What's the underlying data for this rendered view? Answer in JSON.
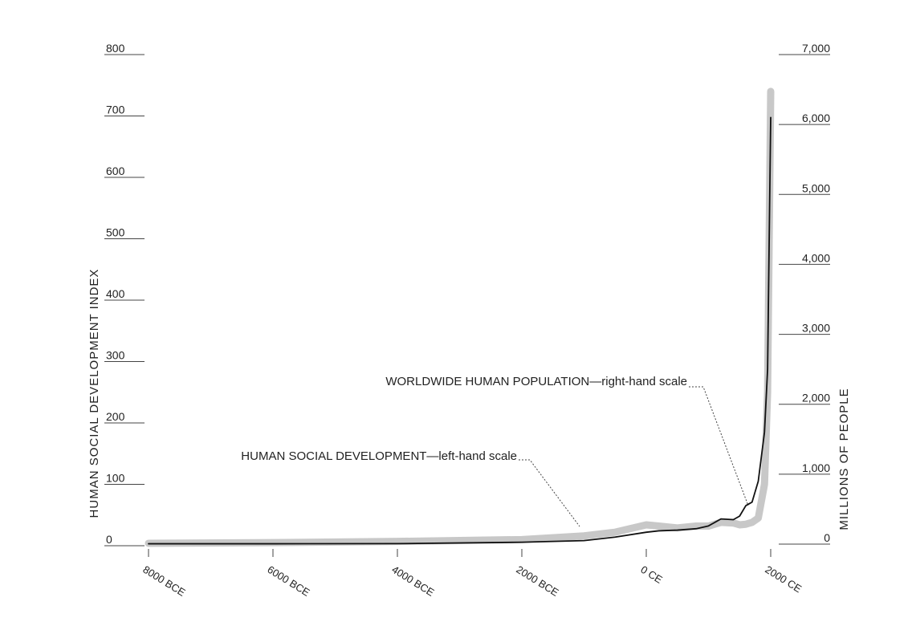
{
  "chart_data": {
    "type": "line",
    "x": [
      -8000,
      -6000,
      -4000,
      -2000,
      -1000,
      -500,
      0,
      200,
      500,
      800,
      1000,
      1200,
      1400,
      1500,
      1600,
      1700,
      1800,
      1900,
      1950,
      2000
    ],
    "series": [
      {
        "name": "WORLDWIDE HUMAN POPULATION—right-hand scale",
        "color": "#111111",
        "axis": "y2",
        "values": [
          5,
          5,
          7,
          27,
          50,
          100,
          170,
          190,
          200,
          220,
          260,
          360,
          350,
          400,
          550,
          600,
          900,
          1600,
          2500,
          6100
        ]
      },
      {
        "name": "HUMAN SOCIAL DEVELOPMENT—left-hand scale",
        "color": "#c8c8c8",
        "values": [
          4,
          5,
          7,
          10,
          16,
          22,
          34,
          32,
          29,
          32,
          32,
          38,
          37,
          34,
          35,
          38,
          45,
          100,
          250,
          740
        ]
      }
    ],
    "ylabel": "HUMAN SOCIAL DEVELOPMENT INDEX",
    "y2label": "MILLIONS OF PEOPLE",
    "xlim": [
      -8000,
      2000
    ],
    "xticks": [
      {
        "value": -8000,
        "label": "8000 BCE"
      },
      {
        "value": -6000,
        "label": "6000 BCE"
      },
      {
        "value": -4000,
        "label": "4000 BCE"
      },
      {
        "value": -2000,
        "label": "2000 BCE"
      },
      {
        "value": 0,
        "label": "0 CE"
      },
      {
        "value": 2000,
        "label": "2000 CE"
      }
    ],
    "ylim": [
      0,
      800
    ],
    "yticks": [
      0,
      100,
      200,
      300,
      400,
      500,
      600,
      700,
      800
    ],
    "y2lim": [
      0,
      7000
    ],
    "y2ticks": [
      0,
      {
        "value": 1000,
        "label": "1,000"
      },
      {
        "value": 2000,
        "label": "2,000"
      },
      {
        "value": 3000,
        "label": "3,000"
      },
      {
        "value": 4000,
        "label": "4,000"
      },
      {
        "value": 5000,
        "label": "5,000"
      },
      {
        "value": 6000,
        "label": "6,000"
      },
      {
        "value": 7000,
        "label": "7,000"
      }
    ]
  }
}
